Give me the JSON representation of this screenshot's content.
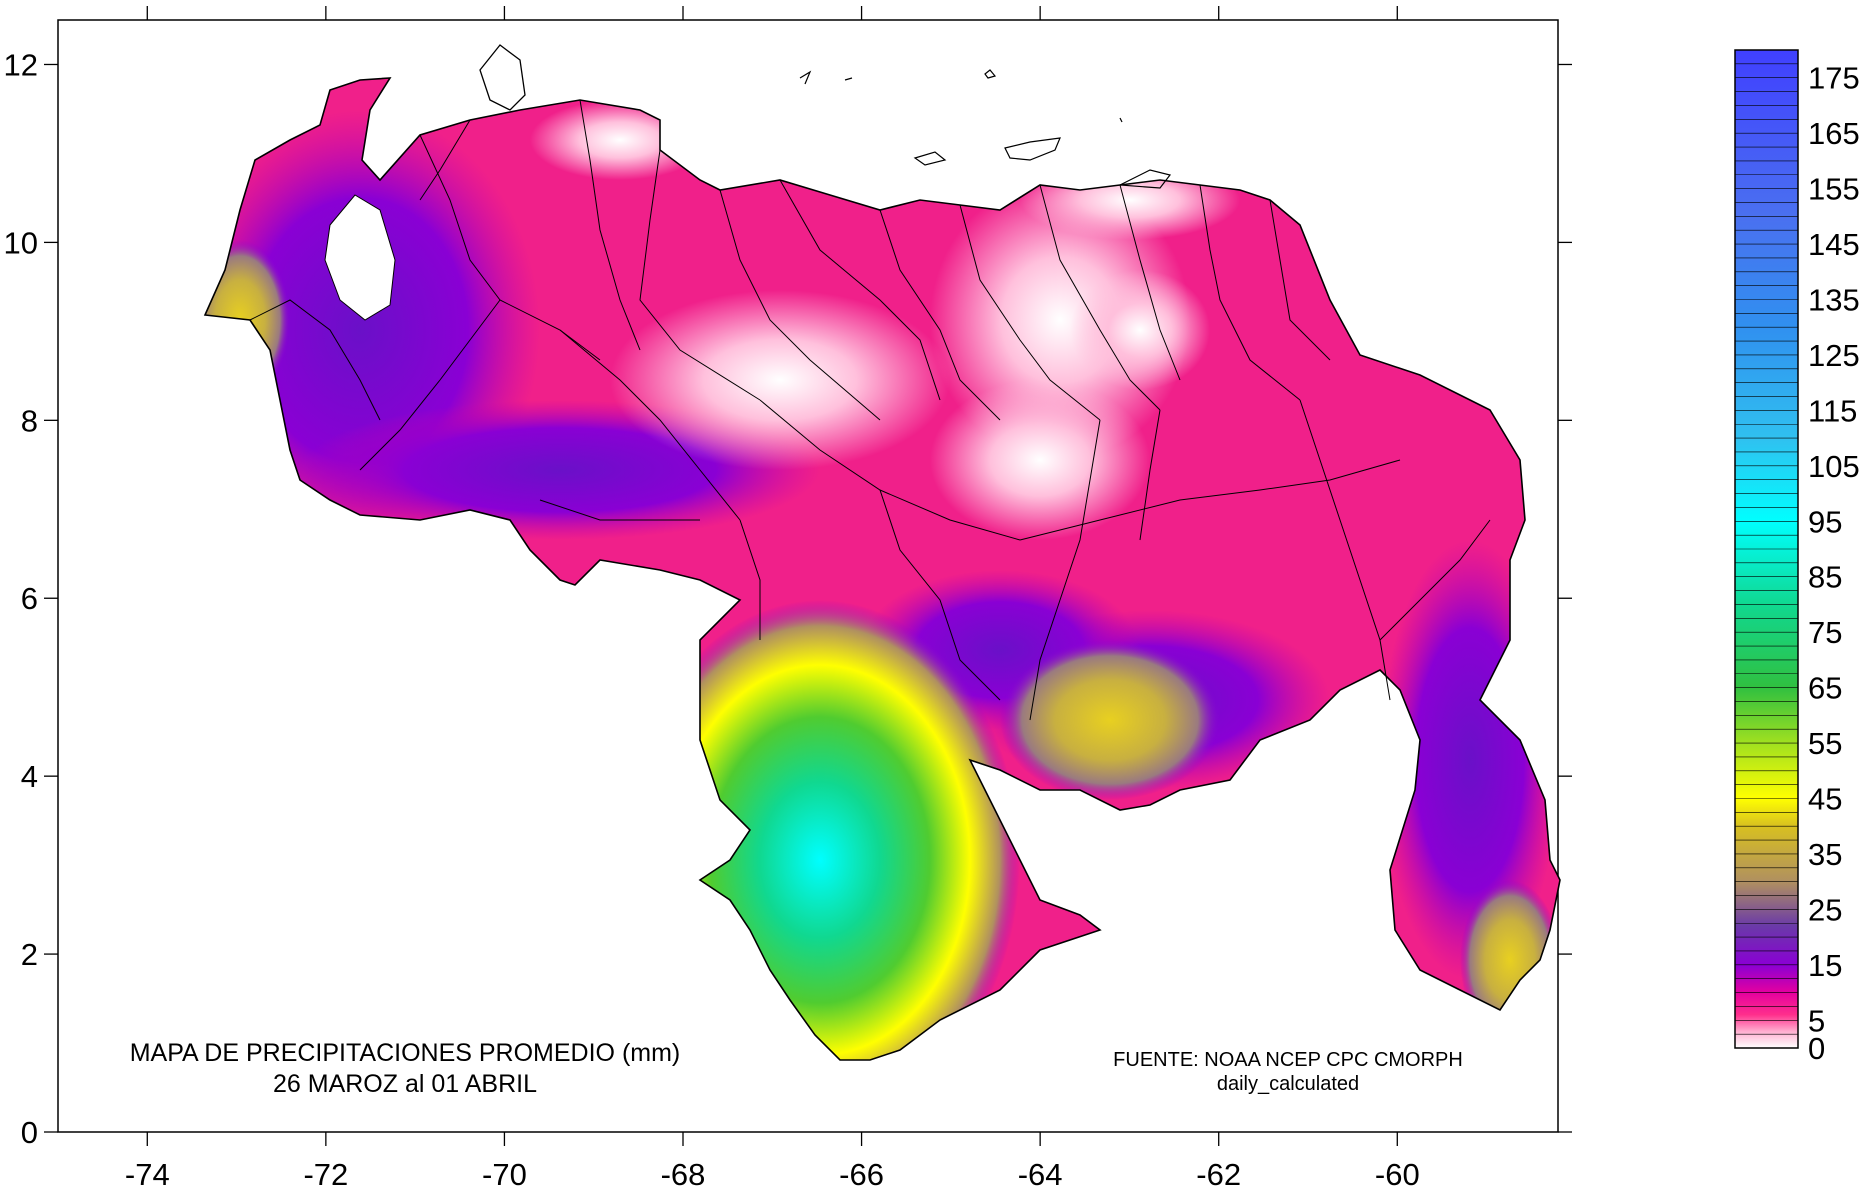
{
  "map": {
    "title_line1": "MAPA DE PRECIPITACIONES PROMEDIO (mm)",
    "title_line2": "26 MAROZ al 01 ABRIL",
    "source_line1": "FUENTE: NOAA NCEP CPC CMORPH",
    "source_line2": "daily_calculated",
    "x_axis": {
      "range": [
        -75,
        -58.2
      ],
      "ticks": [
        -74,
        -72,
        -70,
        -68,
        -66,
        -64,
        -62,
        -60
      ],
      "tick_labels": [
        "-74",
        "-72",
        "-70",
        "-68",
        "-66",
        "-64",
        "-62",
        "-60"
      ]
    },
    "y_axis": {
      "range": [
        0,
        12.5
      ],
      "ticks": [
        0,
        2,
        4,
        6,
        8,
        10,
        12
      ],
      "tick_labels": [
        "0",
        "2",
        "4",
        "6",
        "8",
        "10",
        "12"
      ]
    },
    "colorbar": {
      "unit": "mm",
      "labels": [
        "175",
        "165",
        "155",
        "145",
        "135",
        "125",
        "115",
        "105",
        "95",
        "85",
        "75",
        "65",
        "55",
        "45",
        "35",
        "25",
        "15",
        "5",
        "0"
      ],
      "stops": [
        {
          "value": 0,
          "color": "#ffffff"
        },
        {
          "value": 3,
          "color": "#ffaed0"
        },
        {
          "value": 6,
          "color": "#ff2f8c"
        },
        {
          "value": 10,
          "color": "#e5009f"
        },
        {
          "value": 15,
          "color": "#8a00d4"
        },
        {
          "value": 22,
          "color": "#6a3aa8"
        },
        {
          "value": 30,
          "color": "#b09060"
        },
        {
          "value": 40,
          "color": "#d8c020"
        },
        {
          "value": 45,
          "color": "#ffff00"
        },
        {
          "value": 55,
          "color": "#a0e020"
        },
        {
          "value": 65,
          "color": "#30c040"
        },
        {
          "value": 80,
          "color": "#10d890"
        },
        {
          "value": 95,
          "color": "#00ffff"
        },
        {
          "value": 110,
          "color": "#30c0f0"
        },
        {
          "value": 130,
          "color": "#3090f0"
        },
        {
          "value": 150,
          "color": "#4a70f0"
        },
        {
          "value": 180,
          "color": "#4040ff"
        }
      ]
    }
  }
}
